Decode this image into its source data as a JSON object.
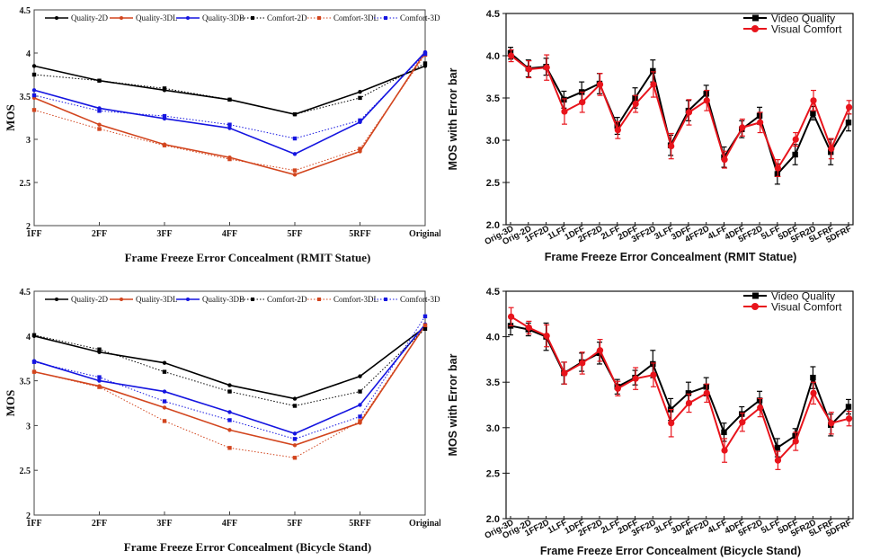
{
  "chart_data": [
    {
      "type": "line",
      "style": "serif",
      "title": "",
      "xlabel": "Frame Freeze Error Concealment (RMIT Statue)",
      "ylabel": "MOS",
      "categories": [
        "1FF",
        "2FF",
        "3FF",
        "4FF",
        "5FF",
        "5RFF",
        "Original"
      ],
      "ylim": [
        2,
        4.5
      ],
      "yticks": [
        "2",
        "2.5",
        "3",
        "3.5",
        "4",
        "4.5"
      ],
      "yticks_values": [
        2,
        2.5,
        3,
        3.5,
        4,
        4.5
      ],
      "legend_position": "top",
      "series": [
        {
          "name": "Quality-2D",
          "color": "#000000",
          "dash": "solid",
          "marker": "circle",
          "values": [
            3.85,
            3.68,
            3.57,
            3.46,
            3.29,
            3.55,
            3.85
          ]
        },
        {
          "name": "Quality-3DL",
          "color": "#d2451e",
          "dash": "solid",
          "marker": "circle",
          "values": [
            3.48,
            3.17,
            2.94,
            2.79,
            2.59,
            2.86,
            4.01
          ]
        },
        {
          "name": "Quality-3DB",
          "color": "#1515e0",
          "dash": "solid",
          "marker": "circle",
          "values": [
            3.57,
            3.36,
            3.24,
            3.13,
            2.83,
            3.2,
            4.01
          ]
        },
        {
          "name": "Comfort-2D",
          "color": "#000000",
          "dash": "dotted",
          "marker": "square",
          "values": [
            3.75,
            3.68,
            3.59,
            3.46,
            3.29,
            3.48,
            3.88
          ]
        },
        {
          "name": "Comfort-3DL",
          "color": "#d2451e",
          "dash": "dotted",
          "marker": "square",
          "values": [
            3.34,
            3.12,
            2.93,
            2.77,
            2.64,
            2.89,
            3.98
          ]
        },
        {
          "name": "Comfort-3DB",
          "color": "#1515e0",
          "dash": "dotted",
          "marker": "square",
          "values": [
            3.51,
            3.33,
            3.27,
            3.17,
            3.01,
            3.22,
            3.99
          ]
        }
      ]
    },
    {
      "type": "line",
      "style": "sans",
      "title": "",
      "xlabel": "Frame Freeze Error Concealment (RMIT Statue)",
      "ylabel": "MOS with Error bar",
      "categories": [
        "Orig-3D",
        "Orig-2D",
        "1FF2D",
        "1LFF",
        "1DFF",
        "2FF2D",
        "2LFF",
        "2DFF",
        "3FF2D",
        "3LFF",
        "3DFF",
        "4FF2D",
        "4LFF",
        "4DFF",
        "5FF2D",
        "5LFF",
        "5DFF",
        "5FR2D",
        "5LFRF",
        "5DFRF"
      ],
      "ylim": [
        2,
        4.5
      ],
      "yticks": [
        "2.0",
        "2.5",
        "3.0",
        "3.5",
        "4.0",
        "4.5"
      ],
      "yticks_values": [
        2,
        2.5,
        3,
        3.5,
        4,
        4.5
      ],
      "legend_position": "top-right",
      "series": [
        {
          "name": "Video Quality",
          "color": "#000000",
          "marker": "square",
          "values": [
            4.03,
            3.85,
            3.87,
            3.48,
            3.57,
            3.67,
            3.17,
            3.5,
            3.82,
            2.94,
            3.35,
            3.55,
            2.8,
            3.13,
            3.29,
            2.6,
            2.83,
            3.32,
            2.86,
            3.21
          ],
          "errors": [
            0.07,
            0.1,
            0.1,
            0.1,
            0.12,
            0.12,
            0.1,
            0.12,
            0.13,
            0.12,
            0.12,
            0.1,
            0.12,
            0.1,
            0.1,
            0.12,
            0.12,
            0.08,
            0.15,
            0.1
          ]
        },
        {
          "name": "Visual Comfort",
          "color": "#e8141c",
          "marker": "circle",
          "values": [
            4.0,
            3.84,
            3.86,
            3.34,
            3.45,
            3.66,
            3.12,
            3.43,
            3.66,
            2.93,
            3.33,
            3.47,
            2.77,
            3.15,
            3.21,
            2.67,
            3.01,
            3.47,
            2.9,
            3.39
          ],
          "errors": [
            0.07,
            0.1,
            0.15,
            0.15,
            0.12,
            0.13,
            0.1,
            0.1,
            0.15,
            0.15,
            0.15,
            0.12,
            0.1,
            0.1,
            0.12,
            0.1,
            0.08,
            0.12,
            0.12,
            0.08
          ]
        }
      ]
    },
    {
      "type": "line",
      "style": "serif",
      "title": "",
      "xlabel": "Frame Freeze Error Concealment (Bicycle Stand)",
      "ylabel": "MOS",
      "categories": [
        "1FF",
        "2FF",
        "3FF",
        "4FF",
        "5FF",
        "5RFF",
        "Original"
      ],
      "ylim": [
        2,
        4.5
      ],
      "yticks": [
        "2",
        "2.5",
        "3",
        "3.5",
        "4",
        "4.5"
      ],
      "yticks_values": [
        2,
        2.5,
        3,
        3.5,
        4,
        4.5
      ],
      "legend_position": "top",
      "series": [
        {
          "name": "Quality-2D",
          "color": "#000000",
          "dash": "solid",
          "marker": "circle",
          "values": [
            4.0,
            3.82,
            3.7,
            3.45,
            3.3,
            3.55,
            4.1
          ]
        },
        {
          "name": "Quality-3DL",
          "color": "#d2451e",
          "dash": "solid",
          "marker": "circle",
          "values": [
            3.6,
            3.44,
            3.2,
            2.95,
            2.78,
            3.03,
            4.12
          ]
        },
        {
          "name": "Quality-3DB",
          "color": "#1515e0",
          "dash": "solid",
          "marker": "circle",
          "values": [
            3.72,
            3.5,
            3.38,
            3.15,
            2.91,
            3.23,
            4.13
          ]
        },
        {
          "name": "Comfort-2D",
          "color": "#000000",
          "dash": "dotted",
          "marker": "square",
          "values": [
            4.01,
            3.85,
            3.6,
            3.38,
            3.22,
            3.38,
            4.08
          ]
        },
        {
          "name": "Comfort-3DL",
          "color": "#d2451e",
          "dash": "dotted",
          "marker": "square",
          "values": [
            3.6,
            3.43,
            3.05,
            2.75,
            2.64,
            3.05,
            4.12
          ]
        },
        {
          "name": "Comfort-3DB",
          "color": "#1515e0",
          "dash": "dotted",
          "marker": "square",
          "values": [
            3.71,
            3.54,
            3.27,
            3.06,
            2.85,
            3.1,
            4.22
          ]
        }
      ]
    },
    {
      "type": "line",
      "style": "sans",
      "title": "",
      "xlabel": "Frame Freeze Error Concealment (Bicycle Stand)",
      "ylabel": "MOS with Error bar",
      "categories": [
        "Orig-3D",
        "Orig-2D",
        "1FF2D",
        "1LFF",
        "1DFF",
        "2FF2D",
        "2LFF",
        "2DFF",
        "3FF2D",
        "3LFF",
        "3DFF",
        "4FF2D",
        "4LFF",
        "4DFF",
        "5FF2D",
        "5LFF",
        "5DFF",
        "5FR2D",
        "5LFRF",
        "5DFRF"
      ],
      "ylim": [
        2,
        4.5
      ],
      "yticks": [
        "2.0",
        "2.5",
        "3.0",
        "3.5",
        "4.0",
        "4.5"
      ],
      "yticks_values": [
        2,
        2.5,
        3,
        3.5,
        4,
        4.5
      ],
      "legend_position": "top-right",
      "series": [
        {
          "name": "Video Quality",
          "color": "#000000",
          "marker": "square",
          "values": [
            4.12,
            4.08,
            4.0,
            3.6,
            3.72,
            3.82,
            3.45,
            3.55,
            3.7,
            3.2,
            3.38,
            3.45,
            2.95,
            3.15,
            3.3,
            2.78,
            2.91,
            3.55,
            3.03,
            3.23
          ],
          "errors": [
            0.1,
            0.07,
            0.15,
            0.12,
            0.1,
            0.12,
            0.08,
            0.08,
            0.15,
            0.12,
            0.12,
            0.1,
            0.1,
            0.08,
            0.1,
            0.1,
            0.08,
            0.12,
            0.12,
            0.08
          ]
        },
        {
          "name": "Visual Comfort",
          "color": "#e8141c",
          "marker": "circle",
          "values": [
            4.22,
            4.1,
            4.01,
            3.6,
            3.71,
            3.85,
            3.43,
            3.54,
            3.58,
            3.05,
            3.27,
            3.38,
            2.75,
            3.06,
            3.22,
            2.64,
            2.85,
            3.38,
            3.05,
            3.1
          ],
          "errors": [
            0.1,
            0.07,
            0.12,
            0.12,
            0.12,
            0.12,
            0.08,
            0.12,
            0.13,
            0.15,
            0.1,
            0.1,
            0.13,
            0.1,
            0.1,
            0.1,
            0.1,
            0.12,
            0.12,
            0.08
          ]
        }
      ]
    }
  ]
}
